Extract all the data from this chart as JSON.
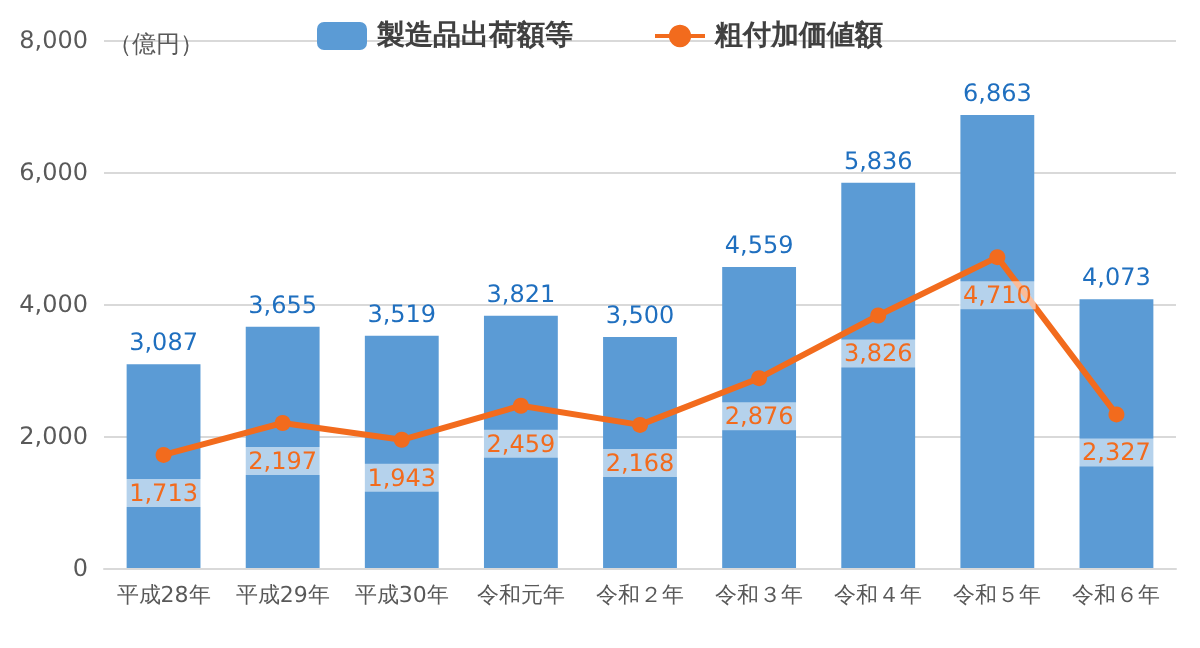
{
  "chart_data": {
    "type": "bar",
    "ylabel": "（億円）",
    "categories": [
      "平成28年",
      "平成29年",
      "平成30年",
      "令和元年",
      "令和２年",
      "令和３年",
      "令和４年",
      "令和５年",
      "令和６年"
    ],
    "series": [
      {
        "name": "製造品出荷額等",
        "color": "#5b9bd5",
        "values": [
          3087,
          3655,
          3519,
          3821,
          3500,
          4559,
          5836,
          6863,
          4073
        ],
        "value_labels": [
          "3,087",
          "3,655",
          "3,519",
          "3,821",
          "3,500",
          "4,559",
          "5,836",
          "6,863",
          "4,073"
        ]
      },
      {
        "name": "粗付加価値額",
        "type": "line",
        "color": "#f26b1d",
        "values": [
          1713,
          2197,
          1943,
          2459,
          2168,
          2876,
          3826,
          4710,
          2327
        ],
        "value_labels": [
          "1,713",
          "2,197",
          "1,943",
          "2,459",
          "2,168",
          "2,876",
          "3,826",
          "4,710",
          "2,327"
        ]
      }
    ],
    "ylim": [
      0,
      8000
    ],
    "yticks": [
      0,
      {
        "value": 2000,
        "label": "2,000"
      },
      {
        "value": 4000,
        "label": "4,000"
      },
      {
        "value": 6000,
        "label": "6,000"
      },
      {
        "value": 8000,
        "label": "8,000"
      }
    ],
    "grid": "y",
    "legend": "top",
    "marker": "circle",
    "line_style": "solid"
  }
}
